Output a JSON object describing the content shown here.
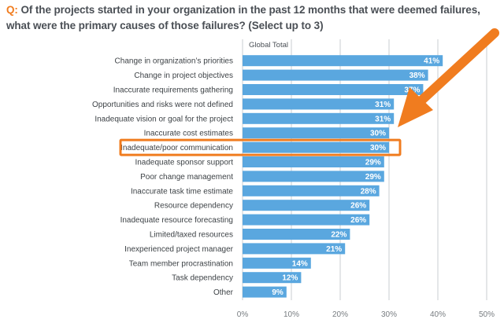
{
  "question": {
    "prefix": "Q:",
    "text": "Of the projects started in your organization in the past 12 months that were deemed failures, what were the primary causes of those failures? (Select up to 3)"
  },
  "colors": {
    "bar": "#5aa7df",
    "highlight": "#f07c1f",
    "grid": "#c9cdd1",
    "accent_text": "#f07c1f"
  },
  "chart_data": {
    "type": "bar",
    "orientation": "horizontal",
    "series": [
      {
        "name": "Global Total",
        "values": [
          41,
          38,
          37,
          31,
          31,
          30,
          30,
          29,
          29,
          28,
          26,
          26,
          22,
          21,
          14,
          12,
          9
        ]
      }
    ],
    "categories": [
      "Change in organization’s priorities",
      "Change in project objectives",
      "Inaccurate requirements gathering",
      "Opportunities and risks were not defined",
      "Inadequate vision or goal for the project",
      "Inaccurate cost estimates",
      "Inadequate/poor communication",
      "Inadequate sponsor support",
      "Poor change management",
      "Inaccurate task time estimate",
      "Resource dependency",
      "Inadequate resource forecasting",
      "Limited/taxed resources",
      "Inexperienced project manager",
      "Team member procrastination",
      "Task dependency",
      "Other"
    ],
    "value_labels": [
      "41%",
      "38%",
      "37%",
      "31%",
      "31%",
      "30%",
      "30%",
      "29%",
      "29%",
      "28%",
      "26%",
      "26%",
      "22%",
      "21%",
      "14%",
      "12%",
      "9%"
    ],
    "xlim": [
      0,
      50
    ],
    "xticks": [
      0,
      10,
      20,
      30,
      40,
      50
    ],
    "xtick_labels": [
      "0%",
      "10%",
      "20%",
      "30%",
      "40%",
      "50%"
    ],
    "grid": "vertical",
    "highlighted_category": "Inadequate/poor communication",
    "annotation": "orange arrow pointing to highlighted bar"
  }
}
